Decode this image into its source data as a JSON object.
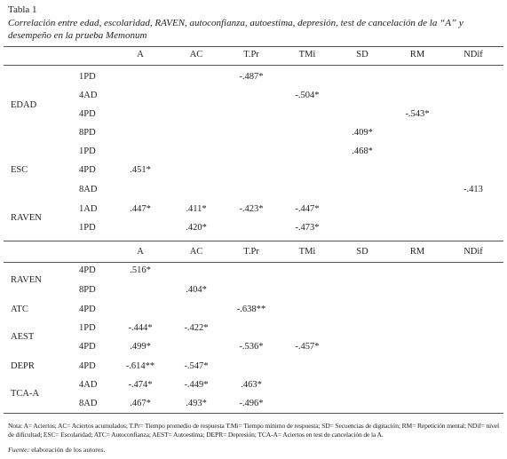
{
  "title": "Tabla 1",
  "caption": "Correlación entre edad, escolaridad, RAVEN, autoconfianza, autoestima, depresión, test de cancelación de la “A” y desempeño en la prueba Memonum",
  "table": {
    "columns": [
      "A",
      "AC",
      "T.Pr",
      "TMi",
      "SD",
      "RM",
      "NDif"
    ],
    "blocks": [
      {
        "groups": [
          {
            "label": "EDAD",
            "rows": [
              {
                "sub": "1PD",
                "cells": [
                  null,
                  null,
                  "-.487*",
                  null,
                  null,
                  null,
                  null
                ]
              },
              {
                "sub": "4AD",
                "cells": [
                  null,
                  null,
                  null,
                  "-.504*",
                  null,
                  null,
                  null
                ]
              },
              {
                "sub": "4PD",
                "cells": [
                  null,
                  null,
                  null,
                  null,
                  null,
                  "-.543*",
                  null
                ]
              },
              {
                "sub": "8PD",
                "cells": [
                  null,
                  null,
                  null,
                  null,
                  ".409*",
                  null,
                  null
                ]
              }
            ]
          },
          {
            "label": "ESC",
            "rows": [
              {
                "sub": "1PD",
                "cells": [
                  null,
                  null,
                  null,
                  null,
                  ".468*",
                  null,
                  null
                ]
              },
              {
                "sub": "4PD",
                "cells": [
                  ".451*",
                  null,
                  null,
                  null,
                  null,
                  null,
                  null
                ]
              },
              {
                "sub": "8AD",
                "cells": [
                  null,
                  null,
                  null,
                  null,
                  null,
                  null,
                  "-.413"
                ]
              }
            ]
          },
          {
            "label": "RAVEN",
            "rows": [
              {
                "sub": "1AD",
                "cells": [
                  ".447*",
                  ".411*",
                  "-.423*",
                  "-.447*",
                  null,
                  null,
                  null
                ]
              },
              {
                "sub": "1PD",
                "cells": [
                  null,
                  ".420*",
                  null,
                  "-.473*",
                  null,
                  null,
                  null
                ]
              }
            ]
          }
        ]
      },
      {
        "groups": [
          {
            "label": "RAVEN",
            "rows": [
              {
                "sub": "4PD",
                "cells": [
                  ".516*",
                  null,
                  null,
                  null,
                  null,
                  null,
                  null
                ]
              },
              {
                "sub": "8PD",
                "cells": [
                  null,
                  ".404*",
                  null,
                  null,
                  null,
                  null,
                  null
                ]
              }
            ]
          },
          {
            "label": "ATC",
            "rows": [
              {
                "sub": "4PD",
                "cells": [
                  null,
                  null,
                  "-.638**",
                  null,
                  null,
                  null,
                  null
                ]
              }
            ]
          },
          {
            "label": "AEST",
            "rows": [
              {
                "sub": "1PD",
                "cells": [
                  "-.444*",
                  "-.422*",
                  null,
                  null,
                  null,
                  null,
                  null
                ]
              },
              {
                "sub": "4PD",
                "cells": [
                  ".499*",
                  null,
                  "-.536*",
                  "-.457*",
                  null,
                  null,
                  null
                ]
              }
            ]
          },
          {
            "label": "DEPR",
            "rows": [
              {
                "sub": "4PD",
                "cells": [
                  "-.614**",
                  "-.547*",
                  null,
                  null,
                  null,
                  null,
                  null
                ]
              }
            ]
          },
          {
            "label": "TCA-A",
            "rows": [
              {
                "sub": "4AD",
                "cells": [
                  "-.474*",
                  "-.449*",
                  ".463*",
                  null,
                  null,
                  null,
                  null
                ]
              },
              {
                "sub": "8AD",
                "cells": [
                  ".467*",
                  ".493*",
                  "-.496*",
                  null,
                  null,
                  null,
                  null
                ]
              }
            ]
          }
        ]
      }
    ]
  },
  "note": "Nota: A= Aciertos; AC= Aciertos acumulados; T.Pr= Tiempo promedio de respuesta T.Mi= Tiempo mínimo de respuesta; SD= Secuencias de digitación; RM= Repetición mental; NDif= nivel de dificultad; ESC= Escolaridad; ATC= Autoconfianza; AEST= Autoestima; DEPR= Depresión; TCA-A= Aciertos en test de cancelación de la A.",
  "source": {
    "label": "Fuente:",
    "text": "elaboración de los autores."
  }
}
